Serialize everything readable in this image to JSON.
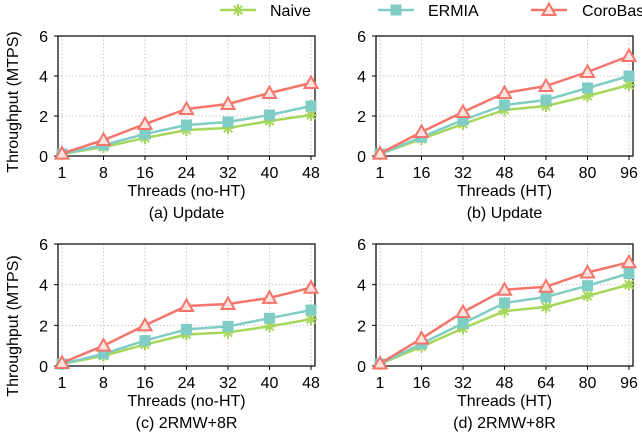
{
  "legend": [
    {
      "name": "Naive",
      "color": "#a6d75b",
      "marker": "star"
    },
    {
      "name": "ERMIA",
      "color": "#7fcdc4",
      "marker": "square"
    },
    {
      "name": "CoroBase",
      "color": "#f4756b",
      "marker": "triangle"
    }
  ],
  "ylabel_left": "Throughput (MTPS)",
  "chart_data": [
    {
      "type": "line",
      "caption": "(a) Update",
      "xlabel": "Threads (no-HT)",
      "categories": [
        "1",
        "8",
        "16",
        "24",
        "32",
        "40",
        "48"
      ],
      "ylim": [
        0,
        6
      ],
      "yticks": [
        0,
        2,
        4,
        6
      ],
      "grid": true,
      "series": [
        {
          "name": "Naive",
          "values": [
            0.1,
            0.45,
            0.9,
            1.3,
            1.4,
            1.75,
            2.05
          ]
        },
        {
          "name": "ERMIA",
          "values": [
            0.1,
            0.55,
            1.1,
            1.55,
            1.7,
            2.05,
            2.5
          ]
        },
        {
          "name": "CoroBase",
          "values": [
            0.12,
            0.8,
            1.6,
            2.35,
            2.6,
            3.15,
            3.65
          ]
        }
      ]
    },
    {
      "type": "line",
      "caption": "(b) Update",
      "xlabel": "Threads (HT)",
      "categories": [
        "1",
        "16",
        "32",
        "48",
        "64",
        "80",
        "96"
      ],
      "ylim": [
        0,
        6
      ],
      "yticks": [
        0,
        2,
        4,
        6
      ],
      "grid": true,
      "series": [
        {
          "name": "Naive",
          "values": [
            0.1,
            0.85,
            1.6,
            2.3,
            2.5,
            3.0,
            3.55
          ]
        },
        {
          "name": "ERMIA",
          "values": [
            0.1,
            0.95,
            1.8,
            2.55,
            2.8,
            3.4,
            4.0
          ]
        },
        {
          "name": "CoroBase",
          "values": [
            0.12,
            1.2,
            2.2,
            3.15,
            3.5,
            4.2,
            5.0
          ]
        }
      ]
    },
    {
      "type": "line",
      "caption": "(c) 2RMW+8R",
      "xlabel": "Threads (no-HT)",
      "categories": [
        "1",
        "8",
        "16",
        "24",
        "32",
        "40",
        "48"
      ],
      "ylim": [
        0,
        6
      ],
      "yticks": [
        0,
        2,
        4,
        6
      ],
      "grid": true,
      "series": [
        {
          "name": "Naive",
          "values": [
            0.1,
            0.5,
            1.05,
            1.55,
            1.65,
            1.95,
            2.3
          ]
        },
        {
          "name": "ERMIA",
          "values": [
            0.1,
            0.6,
            1.25,
            1.8,
            1.95,
            2.35,
            2.75
          ]
        },
        {
          "name": "CoroBase",
          "values": [
            0.15,
            1.0,
            2.0,
            2.95,
            3.05,
            3.35,
            3.85
          ]
        }
      ]
    },
    {
      "type": "line",
      "caption": "(d) 2RMW+8R",
      "xlabel": "Threads (HT)",
      "categories": [
        "1",
        "16",
        "32",
        "48",
        "64",
        "80",
        "96"
      ],
      "ylim": [
        0,
        6
      ],
      "yticks": [
        0,
        2,
        4,
        6
      ],
      "grid": true,
      "series": [
        {
          "name": "Naive",
          "values": [
            0.1,
            0.95,
            1.85,
            2.7,
            2.9,
            3.45,
            4.0
          ]
        },
        {
          "name": "ERMIA",
          "values": [
            0.1,
            1.1,
            2.1,
            3.1,
            3.4,
            3.95,
            4.55
          ]
        },
        {
          "name": "CoroBase",
          "values": [
            0.12,
            1.35,
            2.65,
            3.75,
            3.9,
            4.6,
            5.1
          ]
        }
      ]
    }
  ]
}
